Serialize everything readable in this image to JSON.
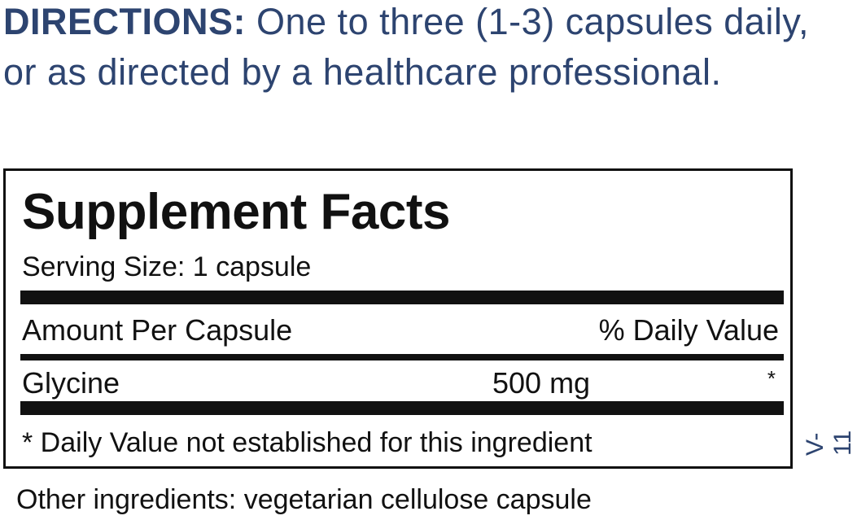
{
  "directions": {
    "label": "DIRECTIONS:",
    "text": " One to three (1-3) capsules daily, or as directed by a healthcare professional."
  },
  "supplement_facts": {
    "title": "Supplement Facts",
    "serving_size": "Serving Size: 1 capsule",
    "header_left": "Amount Per Capsule",
    "header_right": "% Daily Value",
    "ingredients": [
      {
        "name": "Glycine",
        "amount": "500 mg",
        "daily_value": "*"
      }
    ],
    "footnote": "* Daily Value not established for this ingredient"
  },
  "other_ingredients": "Other ingredients: vegetarian cellulose capsule",
  "version_code": "V-11",
  "colors": {
    "directions_text": "#2d4470",
    "label_text": "#111111"
  }
}
